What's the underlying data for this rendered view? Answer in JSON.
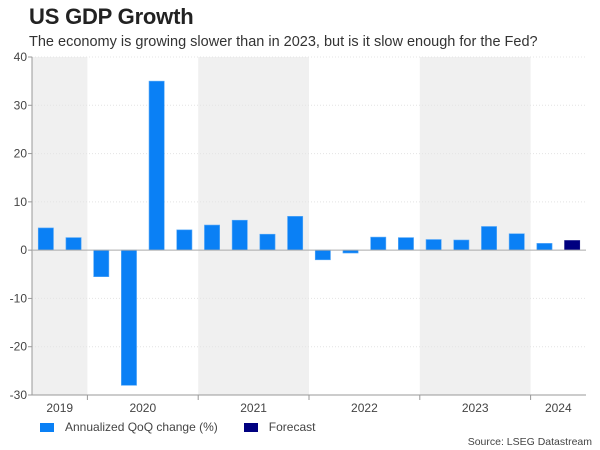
{
  "chart_data": {
    "type": "bar",
    "title": "US GDP Growth",
    "subtitle": "The economy is growing slower than in 2023, but is it slow enough for the Fed?",
    "xlabel": "",
    "ylabel": "",
    "ylim": [
      -30,
      40
    ],
    "yticks": [
      40,
      30,
      20,
      10,
      0,
      -10,
      -20,
      -30
    ],
    "grid": true,
    "categories": [
      "2019 Q3",
      "2019 Q4",
      "2020 Q1",
      "2020 Q2",
      "2020 Q3",
      "2020 Q4",
      "2021 Q1",
      "2021 Q2",
      "2021 Q3",
      "2021 Q4",
      "2022 Q1",
      "2022 Q2",
      "2022 Q3",
      "2022 Q4",
      "2023 Q1",
      "2023 Q2",
      "2023 Q3",
      "2023 Q4",
      "2024 Q1",
      "2024 Q2"
    ],
    "year_groups": [
      {
        "label": "2019",
        "quarters": 2,
        "shaded": true
      },
      {
        "label": "2020",
        "quarters": 4,
        "shaded": false
      },
      {
        "label": "2021",
        "quarters": 4,
        "shaded": true
      },
      {
        "label": "2022",
        "quarters": 4,
        "shaded": false
      },
      {
        "label": "2023",
        "quarters": 4,
        "shaded": true
      },
      {
        "label": "2024",
        "quarters": 2,
        "shaded": false
      }
    ],
    "series": [
      {
        "name": "Annualized QoQ change (%)",
        "color": "#0a80f5",
        "values": [
          4.6,
          2.6,
          -5.5,
          -28.0,
          35.0,
          4.2,
          5.2,
          6.2,
          3.3,
          7.0,
          -2.0,
          -0.6,
          2.7,
          2.6,
          2.2,
          2.1,
          4.9,
          3.4,
          1.4,
          null
        ]
      },
      {
        "name": "Forecast",
        "color": "#000080",
        "values": [
          null,
          null,
          null,
          null,
          null,
          null,
          null,
          null,
          null,
          null,
          null,
          null,
          null,
          null,
          null,
          null,
          null,
          null,
          null,
          2.0
        ]
      }
    ],
    "legend_position": "bottom-left",
    "source": "Source: LSEG Datastream"
  }
}
